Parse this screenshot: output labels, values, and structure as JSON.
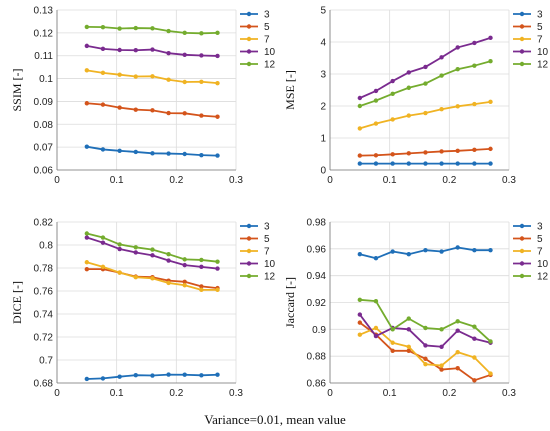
{
  "caption": "Variance=0.01, mean value",
  "legend_labels": [
    "3",
    "5",
    "7",
    "10",
    "12"
  ],
  "colors": {
    "3": "#1f6fb8",
    "5": "#d4541b",
    "7": "#f0b323",
    "10": "#7a2b8f",
    "12": "#74ac2e"
  },
  "chart_data": [
    {
      "type": "line",
      "ylabel": "SSIM [-]",
      "xlabel": "",
      "xlim": [
        0,
        0.3
      ],
      "ylim": [
        0.06,
        0.13
      ],
      "xticks": [
        0,
        0.1,
        0.2,
        0.3
      ],
      "xtick_labels": [
        "0",
        "0.1",
        "0.2",
        "0.3"
      ],
      "yticks": [
        0.06,
        0.07,
        0.08,
        0.09,
        0.1,
        0.11,
        0.12,
        0.13
      ],
      "ytick_labels": [
        "0.06",
        "0.07",
        "0.08",
        "0.09",
        "0.1",
        "0.11",
        "0.12",
        "0.13"
      ],
      "grid": true,
      "legend": "top-right",
      "x": [
        0.05,
        0.077,
        0.105,
        0.132,
        0.16,
        0.187,
        0.214,
        0.242,
        0.269
      ],
      "series": [
        {
          "name": "3",
          "values": [
            0.0702,
            0.069,
            0.0684,
            0.0679,
            0.0673,
            0.0672,
            0.067,
            0.0665,
            0.0663
          ]
        },
        {
          "name": "5",
          "values": [
            0.0892,
            0.0886,
            0.0873,
            0.0864,
            0.0861,
            0.0849,
            0.0848,
            0.0838,
            0.0833
          ]
        },
        {
          "name": "7",
          "values": [
            0.1036,
            0.1025,
            0.1017,
            0.1009,
            0.101,
            0.0995,
            0.0985,
            0.0986,
            0.098
          ]
        },
        {
          "name": "10",
          "values": [
            0.1143,
            0.113,
            0.1125,
            0.1124,
            0.1127,
            0.1111,
            0.1104,
            0.1101,
            0.1099
          ]
        },
        {
          "name": "12",
          "values": [
            0.1226,
            0.1225,
            0.1219,
            0.1221,
            0.122,
            0.1208,
            0.12,
            0.1198,
            0.12
          ]
        }
      ]
    },
    {
      "type": "line",
      "ylabel": "MSE [-]",
      "xlabel": "",
      "xlim": [
        0,
        0.3
      ],
      "ylim": [
        0,
        5
      ],
      "xticks": [
        0,
        0.1,
        0.2,
        0.3
      ],
      "xtick_labels": [
        "0",
        "0.1",
        "0.2",
        "0.3"
      ],
      "yticks": [
        0,
        1,
        2,
        3,
        4,
        5
      ],
      "ytick_labels": [
        "0",
        "1",
        "2",
        "3",
        "4",
        "5"
      ],
      "grid": true,
      "legend": "top-right",
      "x": [
        0.05,
        0.077,
        0.105,
        0.132,
        0.16,
        0.187,
        0.214,
        0.242,
        0.269
      ],
      "series": [
        {
          "name": "3",
          "values": [
            0.2,
            0.2,
            0.2,
            0.2,
            0.2,
            0.2,
            0.2,
            0.2,
            0.2
          ]
        },
        {
          "name": "5",
          "values": [
            0.45,
            0.46,
            0.49,
            0.52,
            0.55,
            0.58,
            0.6,
            0.63,
            0.66
          ]
        },
        {
          "name": "7",
          "values": [
            1.3,
            1.45,
            1.58,
            1.7,
            1.78,
            1.9,
            1.99,
            2.06,
            2.13
          ]
        },
        {
          "name": "10",
          "values": [
            2.25,
            2.47,
            2.78,
            3.05,
            3.22,
            3.52,
            3.83,
            3.97,
            4.13
          ]
        },
        {
          "name": "12",
          "values": [
            2.0,
            2.17,
            2.38,
            2.57,
            2.7,
            2.95,
            3.15,
            3.26,
            3.4
          ]
        }
      ]
    },
    {
      "type": "line",
      "ylabel": "DICE [-]",
      "xlabel": "",
      "xlim": [
        0,
        0.3
      ],
      "ylim": [
        0.68,
        0.82
      ],
      "xticks": [
        0,
        0.1,
        0.2,
        0.3
      ],
      "xtick_labels": [
        "0",
        "0.1",
        "0.2",
        "0.3"
      ],
      "yticks": [
        0.68,
        0.7,
        0.72,
        0.74,
        0.76,
        0.78,
        0.8,
        0.82
      ],
      "ytick_labels": [
        "0.68",
        "0.7",
        "0.72",
        "0.74",
        "0.76",
        "0.78",
        "0.8",
        "0.82"
      ],
      "grid": true,
      "legend": "top-right",
      "x": [
        0.05,
        0.077,
        0.105,
        0.132,
        0.16,
        0.187,
        0.214,
        0.242,
        0.269
      ],
      "series": [
        {
          "name": "3",
          "values": [
            0.6835,
            0.684,
            0.6855,
            0.6868,
            0.6865,
            0.6873,
            0.6872,
            0.6867,
            0.6872
          ]
        },
        {
          "name": "5",
          "values": [
            0.779,
            0.779,
            0.776,
            0.7725,
            0.772,
            0.769,
            0.768,
            0.764,
            0.7625
          ]
        },
        {
          "name": "7",
          "values": [
            0.785,
            0.781,
            0.776,
            0.772,
            0.771,
            0.767,
            0.765,
            0.761,
            0.761
          ]
        },
        {
          "name": "10",
          "values": [
            0.8065,
            0.802,
            0.7965,
            0.7935,
            0.791,
            0.7865,
            0.7825,
            0.781,
            0.7795
          ]
        },
        {
          "name": "12",
          "values": [
            0.81,
            0.8065,
            0.8005,
            0.798,
            0.796,
            0.792,
            0.7875,
            0.787,
            0.7855
          ]
        }
      ]
    },
    {
      "type": "line",
      "ylabel": "Jaccard [-]",
      "xlabel": "",
      "xlim": [
        0,
        0.3
      ],
      "ylim": [
        0.86,
        0.98
      ],
      "xticks": [
        0,
        0.1,
        0.2,
        0.3
      ],
      "xtick_labels": [
        "0",
        "0.1",
        "0.2",
        "0.3"
      ],
      "yticks": [
        0.86,
        0.88,
        0.9,
        0.92,
        0.94,
        0.96,
        0.98
      ],
      "ytick_labels": [
        "0.86",
        "0.88",
        "0.9",
        "0.92",
        "0.94",
        "0.96",
        "0.98"
      ],
      "grid": true,
      "legend": "top-right",
      "x": [
        0.05,
        0.077,
        0.105,
        0.132,
        0.16,
        0.187,
        0.214,
        0.242,
        0.269
      ],
      "series": [
        {
          "name": "3",
          "values": [
            0.956,
            0.953,
            0.958,
            0.956,
            0.959,
            0.958,
            0.961,
            0.959,
            0.959
          ]
        },
        {
          "name": "5",
          "values": [
            0.905,
            0.896,
            0.884,
            0.884,
            0.878,
            0.87,
            0.871,
            0.862,
            0.866
          ]
        },
        {
          "name": "7",
          "values": [
            0.896,
            0.901,
            0.89,
            0.887,
            0.874,
            0.873,
            0.883,
            0.879,
            0.867
          ]
        },
        {
          "name": "10",
          "values": [
            0.911,
            0.895,
            0.901,
            0.9,
            0.888,
            0.887,
            0.899,
            0.893,
            0.89
          ]
        },
        {
          "name": "12",
          "values": [
            0.922,
            0.921,
            0.9,
            0.908,
            0.901,
            0.9,
            0.906,
            0.902,
            0.891
          ]
        }
      ]
    }
  ]
}
